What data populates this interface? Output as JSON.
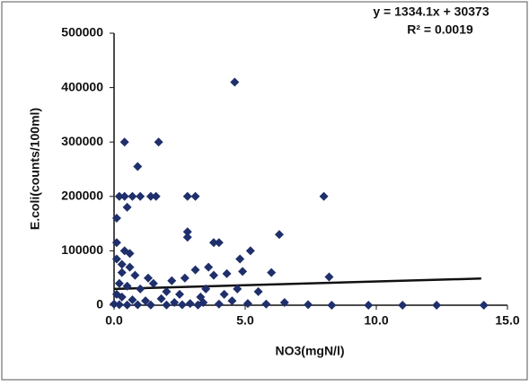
{
  "chart_data": {
    "type": "scatter",
    "x_label": "NO3(mgN/l)",
    "y_label": "E.coli(counts/100ml)",
    "annotations": [
      "y = 1334.1x + 30373",
      "R² = 0.0019"
    ],
    "xlim": [
      0,
      15
    ],
    "ylim": [
      0,
      500000
    ],
    "xticks": [
      {
        "value": 0,
        "label": "0.0"
      },
      {
        "value": 5,
        "label": "5.0"
      },
      {
        "value": 10,
        "label": "10.0"
      },
      {
        "value": 15,
        "label": "15.0"
      }
    ],
    "yticks": [
      0,
      100000,
      200000,
      300000,
      400000,
      500000
    ],
    "grid": false,
    "color": "#1f2f6b",
    "trendline_color": "#111111",
    "trendline": {
      "x": [
        0,
        14
      ],
      "values": [
        30000,
        49000
      ]
    },
    "x": [
      4.6,
      0.4,
      1.7,
      0.9,
      0.2,
      0.4,
      0.7,
      1.0,
      1.4,
      1.6,
      2.8,
      3.1,
      8.0,
      0.5,
      0.1,
      2.8,
      2.8,
      0.1,
      3.8,
      4.0,
      6.3,
      0.4,
      0.6,
      5.2,
      0.1,
      0.3,
      0.6,
      4.8,
      3.6,
      0.3,
      0.8,
      1.3,
      2.2,
      2.7,
      3.1,
      3.8,
      4.3,
      4.9,
      6.0,
      8.2,
      0.2,
      0.5,
      1.0,
      1.5,
      2.0,
      2.5,
      3.3,
      3.5,
      4.2,
      4.7,
      5.5,
      0.1,
      0.3,
      0.7,
      1.2,
      1.8,
      2.3,
      2.9,
      3.4,
      4.0,
      4.5,
      5.1,
      5.8,
      6.5,
      7.4,
      0.0,
      0.2,
      0.5,
      0.9,
      1.4,
      2.0,
      2.6,
      3.2,
      8.3,
      9.7,
      11.0,
      12.3,
      14.1
    ],
    "values": [
      410000,
      300000,
      300000,
      255000,
      200000,
      200000,
      200000,
      200000,
      200000,
      200000,
      200000,
      200000,
      200000,
      180000,
      160000,
      135000,
      125000,
      115000,
      115000,
      115000,
      130000,
      100000,
      95000,
      100000,
      85000,
      75000,
      70000,
      85000,
      70000,
      60000,
      55000,
      50000,
      45000,
      50000,
      65000,
      55000,
      58000,
      62000,
      60000,
      52000,
      40000,
      35000,
      30000,
      40000,
      25000,
      20000,
      15000,
      30000,
      20000,
      30000,
      25000,
      20000,
      15000,
      10000,
      8000,
      12000,
      5000,
      3000,
      5000,
      2000,
      8000,
      3000,
      2000,
      5000,
      1000,
      2000,
      1000,
      500,
      800,
      500,
      500,
      800,
      500,
      0,
      0,
      0,
      0,
      0
    ]
  }
}
